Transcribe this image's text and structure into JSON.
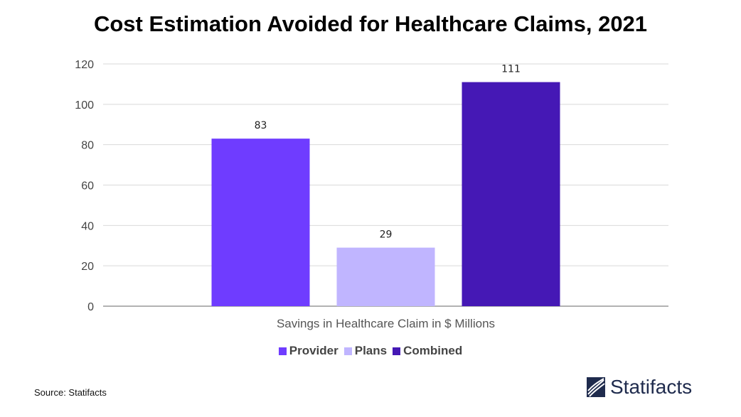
{
  "title": "Cost Estimation Avoided for Healthcare Claims, 2021",
  "source": "Source: Statifacts",
  "brand": "Statifacts",
  "colors": {
    "Provider": "#6f3cff",
    "Plans": "#c0b5ff",
    "Combined": "#4518b5",
    "grid": "#d9d9d9",
    "axis": "#999999",
    "brand": "#1f2b4d"
  },
  "chart_data": {
    "type": "bar",
    "categories": [
      "Savings in Healthcare Claim in $ Millions"
    ],
    "series": [
      {
        "name": "Provider",
        "values": [
          83
        ]
      },
      {
        "name": "Plans",
        "values": [
          29
        ]
      },
      {
        "name": "Combined",
        "values": [
          111
        ]
      }
    ],
    "title": "Cost Estimation Avoided for Healthcare Claims, 2021",
    "xlabel": "",
    "ylabel": "",
    "ylim": [
      0,
      120
    ],
    "yticks": [
      0,
      20,
      40,
      60,
      80,
      100,
      120
    ],
    "grid": true,
    "legend": "bottom"
  }
}
